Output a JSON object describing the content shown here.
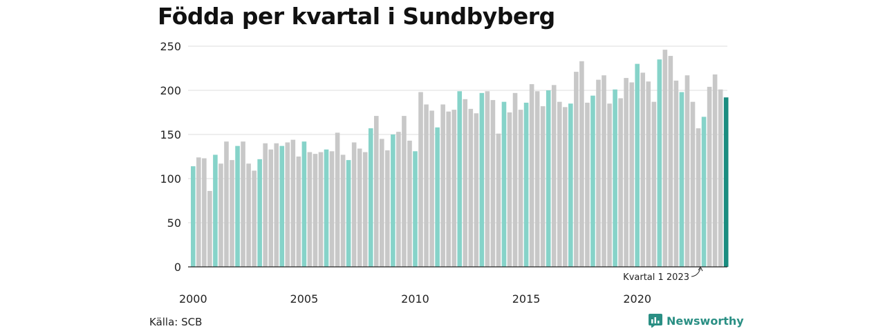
{
  "title": "Födda per kvartal i Sundbyberg",
  "source": "Källa: SCB",
  "brand": "Newsworthy",
  "colors": {
    "bar_default": "#c8c8c8",
    "bar_q1": "#86d3c9",
    "bar_latest": "#1a8c7f",
    "grid": "#dcdcdc",
    "axis": "#222222",
    "brand": "#2a8f84"
  },
  "chart_data": {
    "type": "bar",
    "x_start_year": 2000,
    "quarters_per_year": 4,
    "highlight": "Q1 bars in teal; latest quarter in dark teal",
    "values": [
      114,
      124,
      123,
      86,
      127,
      117,
      142,
      121,
      137,
      142,
      117,
      109,
      122,
      140,
      133,
      140,
      137,
      141,
      144,
      125,
      142,
      130,
      128,
      130,
      133,
      131,
      152,
      127,
      121,
      141,
      134,
      130,
      157,
      171,
      145,
      132,
      150,
      153,
      171,
      143,
      131,
      198,
      184,
      177,
      158,
      184,
      176,
      178,
      199,
      190,
      179,
      174,
      197,
      199,
      189,
      151,
      187,
      175,
      197,
      178,
      186,
      207,
      199,
      182,
      200,
      206,
      187,
      181,
      185,
      221,
      233,
      186,
      194,
      212,
      217,
      185,
      201,
      191,
      214,
      209,
      230,
      220,
      210,
      187,
      235,
      246,
      239,
      211,
      198,
      217,
      187,
      157,
      170,
      204,
      218,
      201,
      192
    ],
    "ylim": [
      0,
      250
    ],
    "yticks": [
      0,
      50,
      100,
      150,
      200,
      250
    ],
    "xticks": [
      "2000",
      "2005",
      "2010",
      "2015",
      "2020"
    ],
    "xlabel": "",
    "ylabel": "",
    "annotation": "Kvartal 1 2023",
    "grid": true
  }
}
